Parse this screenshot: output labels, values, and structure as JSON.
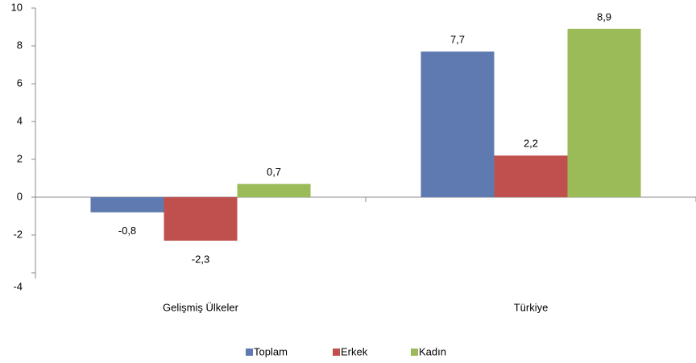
{
  "chart_data": {
    "type": "bar",
    "categories": [
      "Gelişmiş Ülkeler",
      "Türkiye"
    ],
    "series": [
      {
        "name": "Toplam",
        "color": "#5f7ab1",
        "values": [
          -0.8,
          7.7
        ],
        "value_labels": [
          "-0,8",
          "7,7"
        ]
      },
      {
        "name": "Erkek",
        "color": "#c0504d",
        "values": [
          -2.3,
          2.2
        ],
        "value_labels": [
          "-2,3",
          "2,2"
        ]
      },
      {
        "name": "Kadın",
        "color": "#9bbb59",
        "values": [
          0.7,
          8.9
        ],
        "value_labels": [
          "0,7",
          "8,9"
        ]
      }
    ],
    "ylim": [
      -4,
      10
    ],
    "yticks": [
      -4,
      -2,
      0,
      2,
      4,
      6,
      8,
      10
    ],
    "grid": false,
    "legend": "bottom"
  }
}
